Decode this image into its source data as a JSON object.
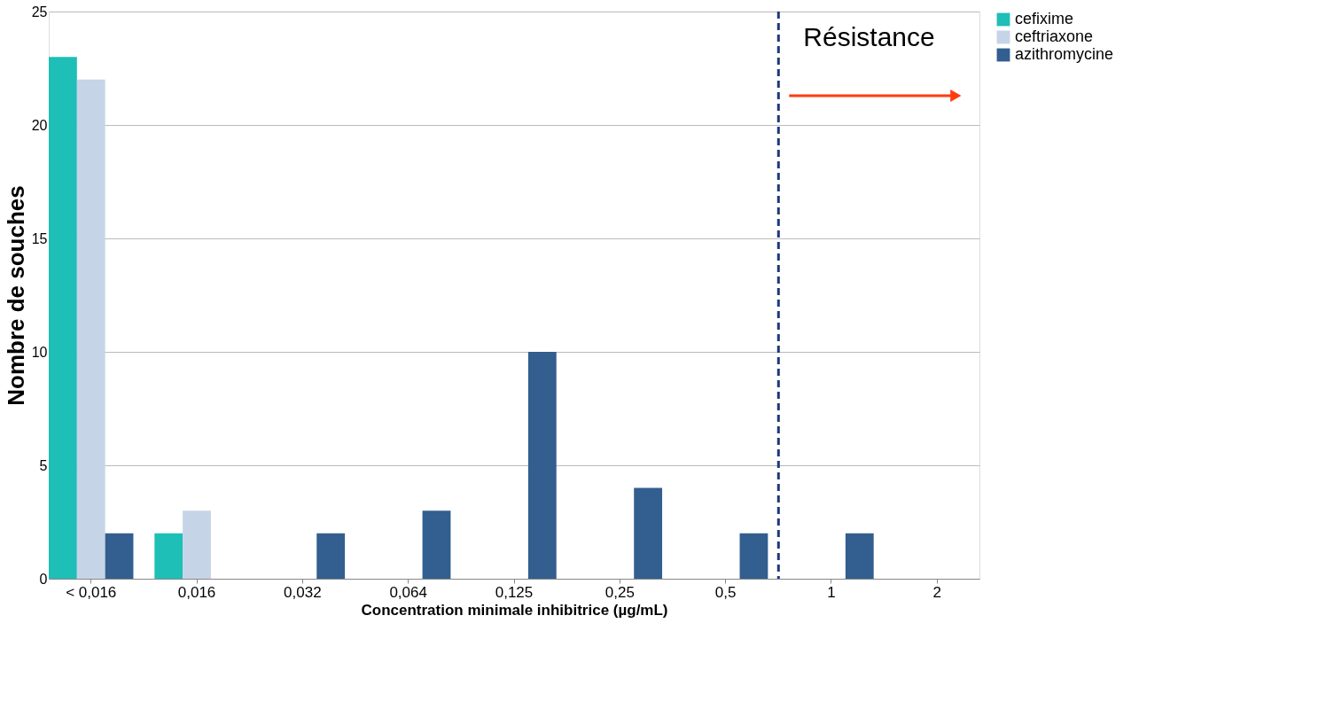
{
  "chart_data": {
    "type": "bar",
    "xlabel": "Concentration minimale inhibitrice (µg/mL)",
    "ylabel": "Nombre de souches",
    "categories": [
      "< 0,016",
      "0,016",
      "0,032",
      "0,064",
      "0,125",
      "0,25",
      "0,5",
      "1",
      "2"
    ],
    "series": [
      {
        "name": "cefixime",
        "color": "#1dbfb6",
        "values": [
          23,
          2,
          0,
          0,
          0,
          0,
          0,
          0,
          0
        ]
      },
      {
        "name": "ceftriaxone",
        "color": "#c6d4e8",
        "values": [
          22,
          3,
          0,
          0,
          0,
          0,
          0,
          0,
          0
        ]
      },
      {
        "name": "azithromycine",
        "color": "#325e90",
        "values": [
          2,
          0,
          2,
          3,
          10,
          4,
          2,
          2,
          0
        ]
      }
    ],
    "ylim": [
      0,
      25
    ],
    "yticks": [
      0,
      5,
      10,
      15,
      20,
      25
    ],
    "grid": "y",
    "legend": "right",
    "ref_lines": [
      {
        "axis": "x",
        "value": "1",
        "label": "Résistance",
        "color": "#1f3a7a",
        "line_style": "dashed"
      }
    ]
  }
}
